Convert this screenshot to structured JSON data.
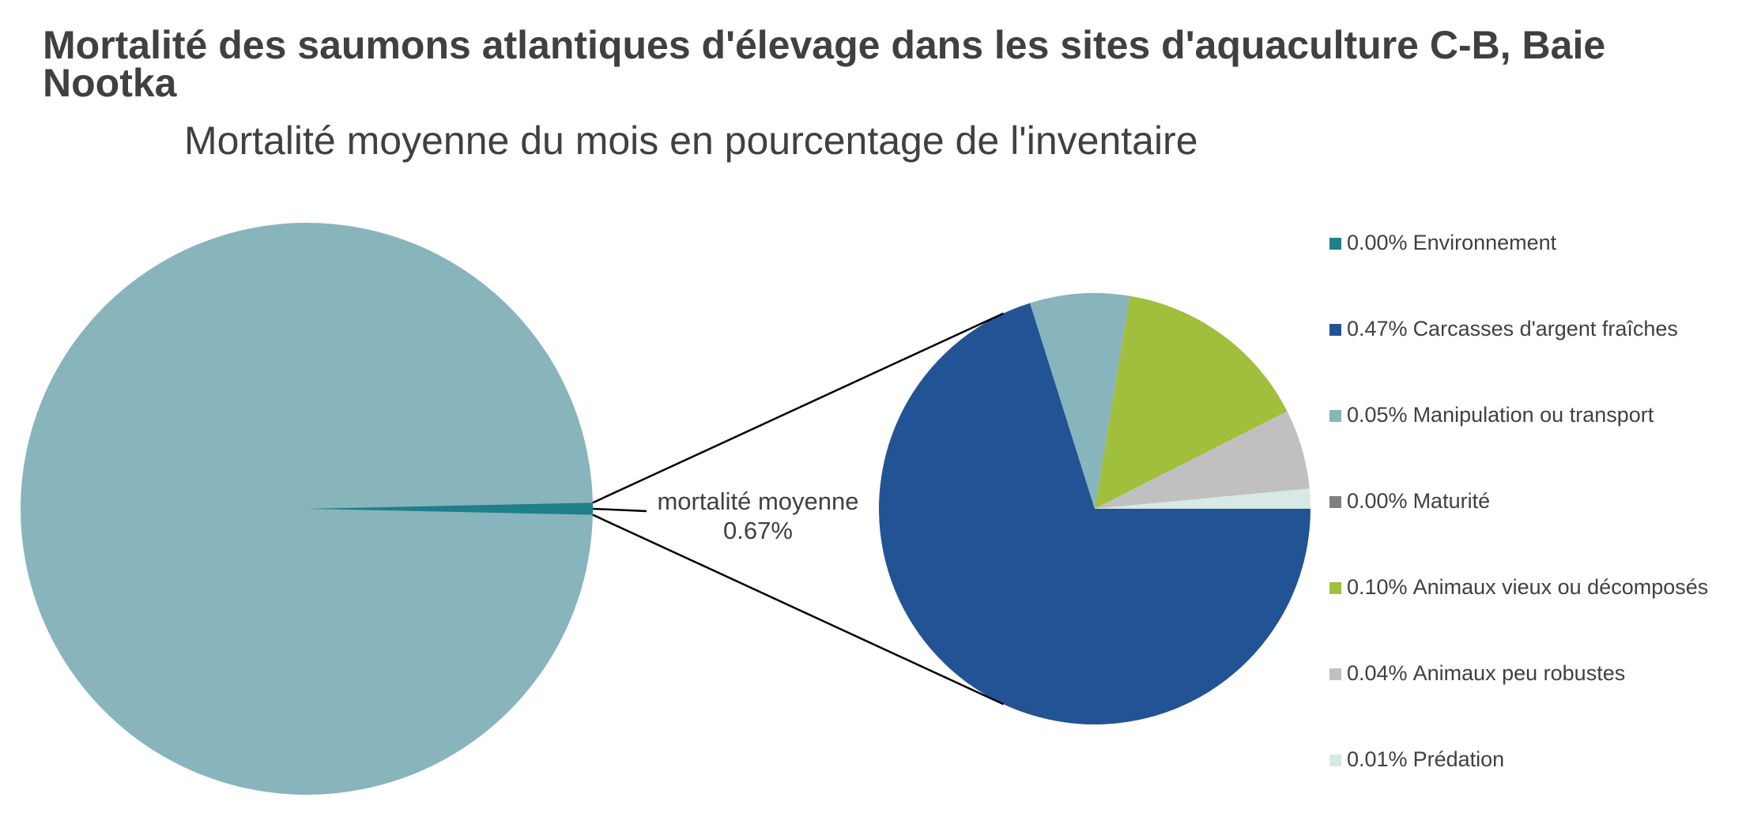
{
  "chart_data": {
    "type": "pie-of-pie",
    "title": "Mortalité des saumons atlantiques d'élevage dans les sites d'aquaculture C-B, Baie Nootka",
    "subtitle": "Mortalité moyenne du mois en pourcentage de l'inventaire",
    "main": {
      "label": "mortalité moyenne",
      "value": 0.67,
      "value_label": "0.67%",
      "color": "#1f7f8a",
      "rest_color": "#88b4bc"
    },
    "categories": [
      "Environnement",
      "Carcasses d'argent fraîches",
      "Manipulation ou transport",
      "Maturité",
      "Animaux vieux ou décomposés",
      "Animaux peu robustes",
      "Prédation"
    ],
    "values": [
      0.0,
      0.47,
      0.05,
      0.0,
      0.1,
      0.04,
      0.01
    ],
    "value_labels": [
      "0.00%",
      "0.47%",
      "0.05%",
      "0.00%",
      "0.10%",
      "0.04%",
      "0.01%"
    ],
    "colors": [
      "#1f7f8a",
      "#225394",
      "#88b4bc",
      "#808080",
      "#a0bf3c",
      "#c0c0c0",
      "#d7e9e4"
    ],
    "legend": "right"
  }
}
